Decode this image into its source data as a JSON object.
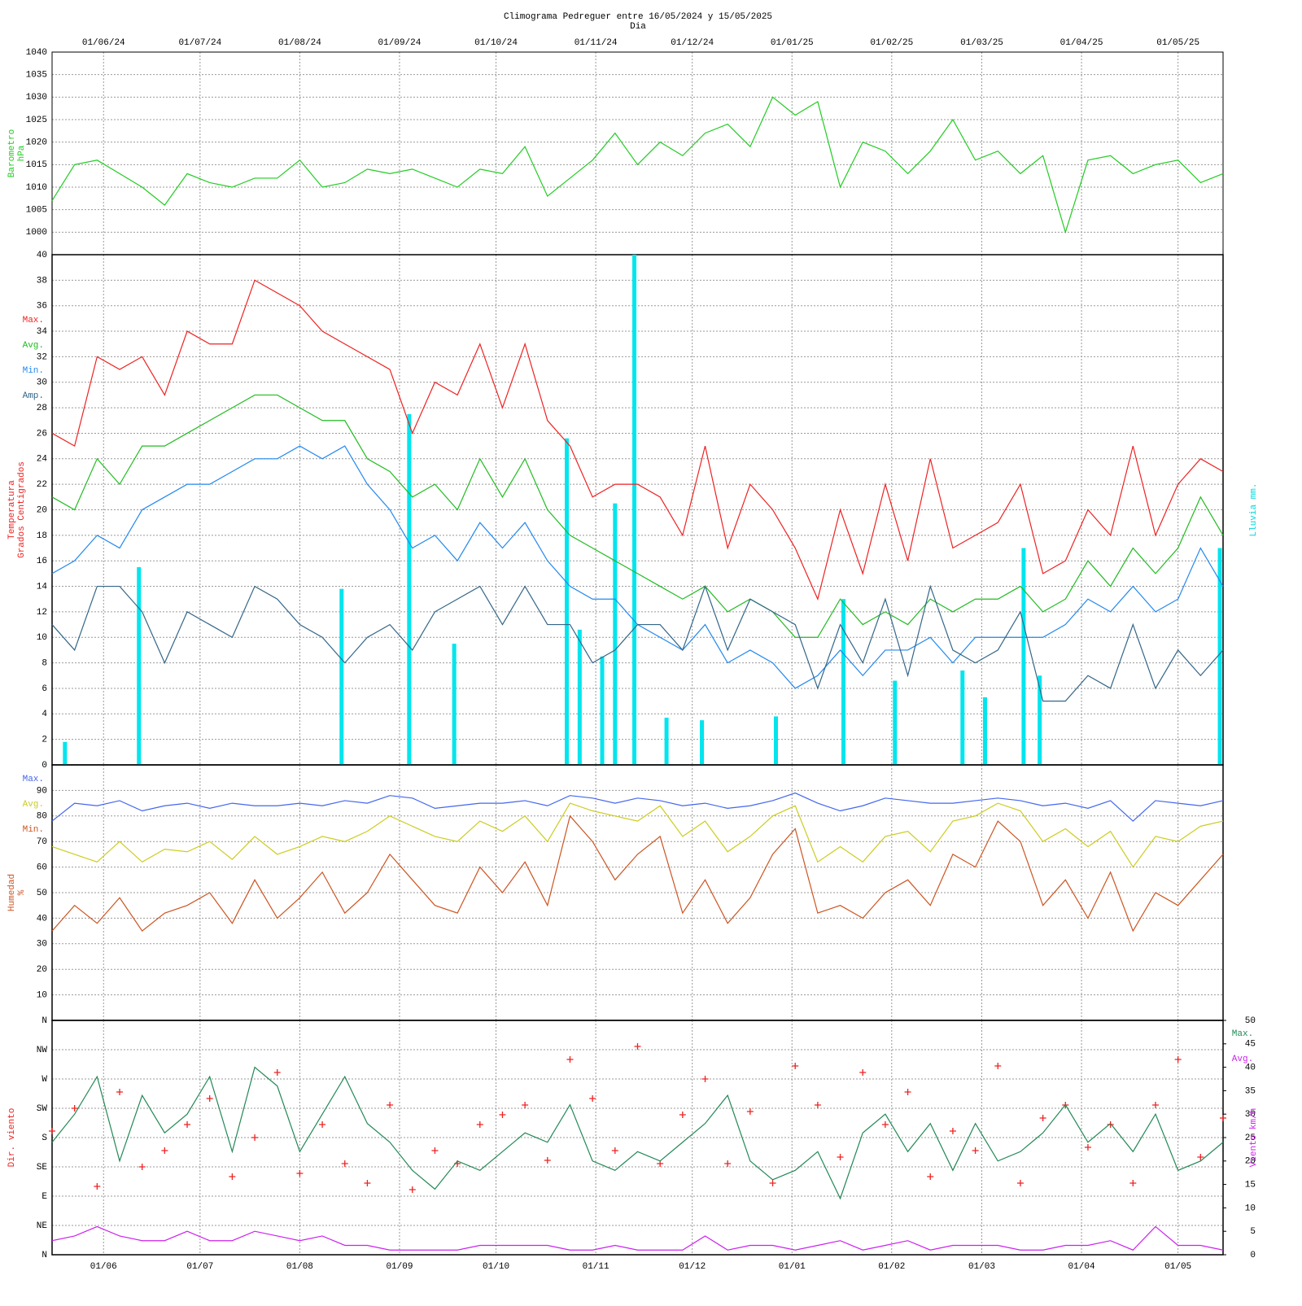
{
  "chart_data": [
    {
      "type": "line",
      "title": "Climograma Pedreguer entre 16/05/2024 y 15/05/2025",
      "subtitle": "Dia",
      "xlim": [
        0,
        364
      ],
      "xtick_position": "top",
      "xticks": [
        {
          "value": 16,
          "label": "01/06/24"
        },
        {
          "value": 46,
          "label": "01/07/24"
        },
        {
          "value": 77,
          "label": "01/08/24"
        },
        {
          "value": 108,
          "label": "01/09/24"
        },
        {
          "value": 138,
          "label": "01/10/24"
        },
        {
          "value": 169,
          "label": "01/11/24"
        },
        {
          "value": 199,
          "label": "01/12/24"
        },
        {
          "value": 230,
          "label": "01/01/25"
        },
        {
          "value": 261,
          "label": "01/02/25"
        },
        {
          "value": 289,
          "label": "01/03/25"
        },
        {
          "value": 320,
          "label": "01/04/25"
        },
        {
          "value": 350,
          "label": "01/05/25"
        }
      ],
      "x": [
        0,
        7,
        14,
        21,
        28,
        35,
        42,
        49,
        56,
        63,
        70,
        77,
        84,
        91,
        98,
        105,
        112,
        119,
        126,
        133,
        140,
        147,
        154,
        161,
        168,
        175,
        182,
        189,
        196,
        203,
        210,
        217,
        224,
        231,
        238,
        245,
        252,
        259,
        266,
        273,
        280,
        287,
        294,
        301,
        308,
        315,
        322,
        329,
        336,
        343,
        350,
        357,
        364
      ],
      "ylabel": [
        "Barometro",
        "hPa"
      ],
      "ylabel_color": "#22cc22",
      "ylim": [
        995,
        1040
      ],
      "yticks": [
        1000,
        1005,
        1010,
        1015,
        1020,
        1025,
        1030,
        1035,
        1040
      ],
      "grid": true,
      "series": [
        {
          "color": "#22cc22",
          "values": [
            1007,
            1015,
            1016,
            1013,
            1010,
            1006,
            1013,
            1011,
            1010,
            1012,
            1012,
            1016,
            1010,
            1011,
            1014,
            1013,
            1014,
            1012,
            1010,
            1014,
            1013,
            1019,
            1008,
            1012,
            1016,
            1022,
            1015,
            1020,
            1017,
            1022,
            1024,
            1019,
            1030,
            1026,
            1029,
            1010,
            1020,
            1018,
            1013,
            1018,
            1025,
            1016,
            1018,
            1013,
            1017,
            1000,
            1016,
            1017,
            1013,
            1015,
            1016,
            1011,
            1013
          ]
        }
      ]
    },
    {
      "type": "line",
      "xlim": [
        0,
        364
      ],
      "x": [
        0,
        7,
        14,
        21,
        28,
        35,
        42,
        49,
        56,
        63,
        70,
        77,
        84,
        91,
        98,
        105,
        112,
        119,
        126,
        133,
        140,
        147,
        154,
        161,
        168,
        175,
        182,
        189,
        196,
        203,
        210,
        217,
        224,
        231,
        238,
        245,
        252,
        259,
        266,
        273,
        280,
        287,
        294,
        301,
        308,
        315,
        322,
        329,
        336,
        343,
        350,
        357,
        364
      ],
      "ylabel": [
        "Temperatura",
        "Grados Centigrados"
      ],
      "ylabel_color": "#ee2222",
      "y2label": [
        "Lluvia mm."
      ],
      "y2label_color": "#00d8e0",
      "ylim": [
        0,
        40
      ],
      "yticks": [
        0,
        2,
        4,
        6,
        8,
        10,
        12,
        14,
        16,
        18,
        20,
        22,
        24,
        26,
        28,
        30,
        32,
        34,
        36,
        38,
        40
      ],
      "y2lim": [
        0,
        40
      ],
      "grid": true,
      "legend": "left",
      "series": [
        {
          "type": "bar",
          "axis": "y2",
          "color": "#00e5ee",
          "x": [
            4,
            27,
            90,
            111,
            125,
            160,
            164,
            171,
            175,
            181,
            191,
            202,
            225,
            246,
            262,
            283,
            290,
            302,
            307,
            363
          ],
          "values": [
            1.8,
            15.5,
            13.8,
            27.5,
            9.5,
            25.6,
            10.6,
            8.5,
            20.5,
            40,
            3.7,
            3.5,
            3.8,
            13,
            6.6,
            7.4,
            5.3,
            17,
            7,
            17
          ]
        },
        {
          "name": "Max.",
          "color": "#ee2222",
          "values": [
            26,
            25,
            32,
            31,
            32,
            29,
            34,
            33,
            33,
            38,
            37,
            36,
            34,
            33,
            32,
            31,
            26,
            30,
            29,
            33,
            28,
            33,
            27,
            25,
            21,
            22,
            22,
            21,
            18,
            25,
            17,
            22,
            20,
            17,
            13,
            20,
            15,
            22,
            16,
            24,
            17,
            18,
            19,
            22,
            15,
            16,
            20,
            18,
            25,
            18,
            22,
            24,
            23
          ]
        },
        {
          "name": "Avg.",
          "color": "#22bb22",
          "values": [
            21,
            20,
            24,
            22,
            25,
            25,
            26,
            27,
            28,
            29,
            29,
            28,
            27,
            27,
            24,
            23,
            21,
            22,
            20,
            24,
            21,
            24,
            20,
            18,
            17,
            16,
            15,
            14,
            13,
            14,
            12,
            13,
            12,
            10,
            10,
            13,
            11,
            12,
            11,
            13,
            12,
            13,
            13,
            14,
            12,
            13,
            16,
            14,
            17,
            15,
            17,
            21,
            18
          ]
        },
        {
          "name": "Min.",
          "color": "#2288ee",
          "values": [
            15,
            16,
            18,
            17,
            20,
            21,
            22,
            22,
            23,
            24,
            24,
            25,
            24,
            25,
            22,
            20,
            17,
            18,
            16,
            19,
            17,
            19,
            16,
            14,
            13,
            13,
            11,
            10,
            9,
            11,
            8,
            9,
            8,
            6,
            7,
            9,
            7,
            9,
            9,
            10,
            8,
            10,
            10,
            10,
            10,
            11,
            13,
            12,
            14,
            12,
            13,
            17,
            14
          ]
        },
        {
          "name": "Amp.",
          "color": "#336688",
          "values": [
            11,
            9,
            14,
            14,
            12,
            8,
            12,
            11,
            10,
            14,
            13,
            11,
            10,
            8,
            10,
            11,
            9,
            12,
            13,
            14,
            11,
            14,
            11,
            11,
            8,
            9,
            11,
            11,
            9,
            14,
            9,
            13,
            12,
            11,
            6,
            11,
            8,
            13,
            7,
            14,
            9,
            8,
            9,
            12,
            5,
            5,
            7,
            6,
            11,
            6,
            9,
            7,
            9
          ]
        }
      ]
    },
    {
      "type": "line",
      "xlim": [
        0,
        364
      ],
      "x": [
        0,
        7,
        14,
        21,
        28,
        35,
        42,
        49,
        56,
        63,
        70,
        77,
        84,
        91,
        98,
        105,
        112,
        119,
        126,
        133,
        140,
        147,
        154,
        161,
        168,
        175,
        182,
        189,
        196,
        203,
        210,
        217,
        224,
        231,
        238,
        245,
        252,
        259,
        266,
        273,
        280,
        287,
        294,
        301,
        308,
        315,
        322,
        329,
        336,
        343,
        350,
        357,
        364
      ],
      "ylabel": [
        "Humedad",
        "%"
      ],
      "ylabel_color": "#cc5522",
      "ylim": [
        0,
        100
      ],
      "yticks": [
        10,
        20,
        30,
        40,
        50,
        60,
        70,
        80,
        90
      ],
      "grid": true,
      "legend": "left",
      "series": [
        {
          "name": "Max.",
          "color": "#4466ee",
          "values": [
            78,
            85,
            84,
            86,
            82,
            84,
            85,
            83,
            85,
            84,
            84,
            85,
            84,
            86,
            85,
            88,
            87,
            83,
            84,
            85,
            85,
            86,
            84,
            88,
            87,
            85,
            87,
            86,
            84,
            85,
            83,
            84,
            86,
            89,
            85,
            82,
            84,
            87,
            86,
            85,
            85,
            86,
            87,
            86,
            84,
            85,
            83,
            86,
            78,
            86,
            85,
            84,
            86
          ]
        },
        {
          "name": "Avg.",
          "color": "#cccc22",
          "values": [
            68,
            65,
            62,
            70,
            62,
            67,
            66,
            70,
            63,
            72,
            65,
            68,
            72,
            70,
            74,
            80,
            76,
            72,
            70,
            78,
            74,
            80,
            70,
            85,
            82,
            80,
            78,
            84,
            72,
            78,
            66,
            72,
            80,
            84,
            62,
            68,
            62,
            72,
            74,
            66,
            78,
            80,
            85,
            82,
            70,
            75,
            68,
            74,
            60,
            72,
            70,
            76,
            78
          ]
        },
        {
          "name": "Min.",
          "color": "#cc5522",
          "values": [
            35,
            45,
            38,
            48,
            35,
            42,
            45,
            50,
            38,
            55,
            40,
            48,
            58,
            42,
            50,
            65,
            55,
            45,
            42,
            60,
            50,
            62,
            45,
            80,
            70,
            55,
            65,
            72,
            42,
            55,
            38,
            48,
            65,
            75,
            42,
            45,
            40,
            50,
            55,
            45,
            65,
            60,
            78,
            70,
            45,
            55,
            40,
            58,
            35,
            50,
            45,
            55,
            65
          ]
        }
      ]
    },
    {
      "type": "line",
      "xlim": [
        0,
        364
      ],
      "xtick_position": "bottom",
      "xticks": [
        {
          "value": 16,
          "label": "01/06"
        },
        {
          "value": 46,
          "label": "01/07"
        },
        {
          "value": 77,
          "label": "01/08"
        },
        {
          "value": 108,
          "label": "01/09"
        },
        {
          "value": 138,
          "label": "01/10"
        },
        {
          "value": 169,
          "label": "01/11"
        },
        {
          "value": 199,
          "label": "01/12"
        },
        {
          "value": 230,
          "label": "01/01"
        },
        {
          "value": 261,
          "label": "01/02"
        },
        {
          "value": 289,
          "label": "01/03"
        },
        {
          "value": 320,
          "label": "01/04"
        },
        {
          "value": 350,
          "label": "01/05"
        }
      ],
      "x": [
        0,
        7,
        14,
        21,
        28,
        35,
        42,
        49,
        56,
        63,
        70,
        77,
        84,
        91,
        98,
        105,
        112,
        119,
        126,
        133,
        140,
        147,
        154,
        161,
        168,
        175,
        182,
        189,
        196,
        203,
        210,
        217,
        224,
        231,
        238,
        245,
        252,
        259,
        266,
        273,
        280,
        287,
        294,
        301,
        308,
        315,
        322,
        329,
        336,
        343,
        350,
        357,
        364
      ],
      "ylabel": [
        "Dir. viento"
      ],
      "ylabel_color": "#ee2222",
      "y2label": [
        "Viento km/h"
      ],
      "y2label_color": "#cc22ee",
      "ylim": [
        0,
        360
      ],
      "yticks": [
        {
          "value": 0,
          "label": "N"
        },
        {
          "value": 45,
          "label": "NE"
        },
        {
          "value": 90,
          "label": "E"
        },
        {
          "value": 135,
          "label": "SE"
        },
        {
          "value": 180,
          "label": "S"
        },
        {
          "value": 225,
          "label": "SW"
        },
        {
          "value": 270,
          "label": "W"
        },
        {
          "value": 315,
          "label": "NW"
        },
        {
          "value": 360,
          "label": "N"
        }
      ],
      "y2lim": [
        0,
        50
      ],
      "y2ticks": [
        0,
        5,
        10,
        15,
        20,
        25,
        30,
        35,
        40,
        45,
        50
      ],
      "grid": true,
      "legend": "right",
      "series": [
        {
          "type": "scatter",
          "color": "#ee2222",
          "values": [
            190,
            225,
            105,
            250,
            135,
            160,
            200,
            240,
            120,
            180,
            280,
            125,
            200,
            140,
            110,
            230,
            100,
            160,
            140,
            200,
            215,
            230,
            145,
            300,
            240,
            160,
            320,
            140,
            215,
            270,
            140,
            220,
            110,
            290,
            230,
            150,
            280,
            200,
            250,
            120,
            190,
            160,
            290,
            110,
            210,
            230,
            165,
            200,
            110,
            230,
            300,
            150,
            210
          ]
        },
        {
          "name": "Max.",
          "axis": "y2",
          "color": "#228855",
          "values": [
            24,
            30,
            38,
            20,
            34,
            26,
            30,
            38,
            22,
            40,
            36,
            22,
            30,
            38,
            28,
            24,
            18,
            14,
            20,
            18,
            22,
            26,
            24,
            32,
            20,
            18,
            22,
            20,
            24,
            28,
            34,
            20,
            16,
            18,
            22,
            12,
            26,
            30,
            22,
            28,
            18,
            28,
            20,
            22,
            26,
            32,
            24,
            28,
            22,
            30,
            18,
            20,
            24
          ]
        },
        {
          "name": "Avg.",
          "axis": "y2",
          "color": "#cc22ee",
          "values": [
            3,
            4,
            6,
            4,
            3,
            3,
            5,
            3,
            3,
            5,
            4,
            3,
            4,
            2,
            2,
            1,
            1,
            1,
            1,
            2,
            2,
            2,
            2,
            1,
            1,
            2,
            1,
            1,
            1,
            4,
            1,
            2,
            2,
            1,
            2,
            3,
            1,
            2,
            3,
            1,
            2,
            2,
            2,
            1,
            1,
            2,
            2,
            3,
            1,
            6,
            2,
            2,
            1
          ]
        }
      ]
    }
  ]
}
